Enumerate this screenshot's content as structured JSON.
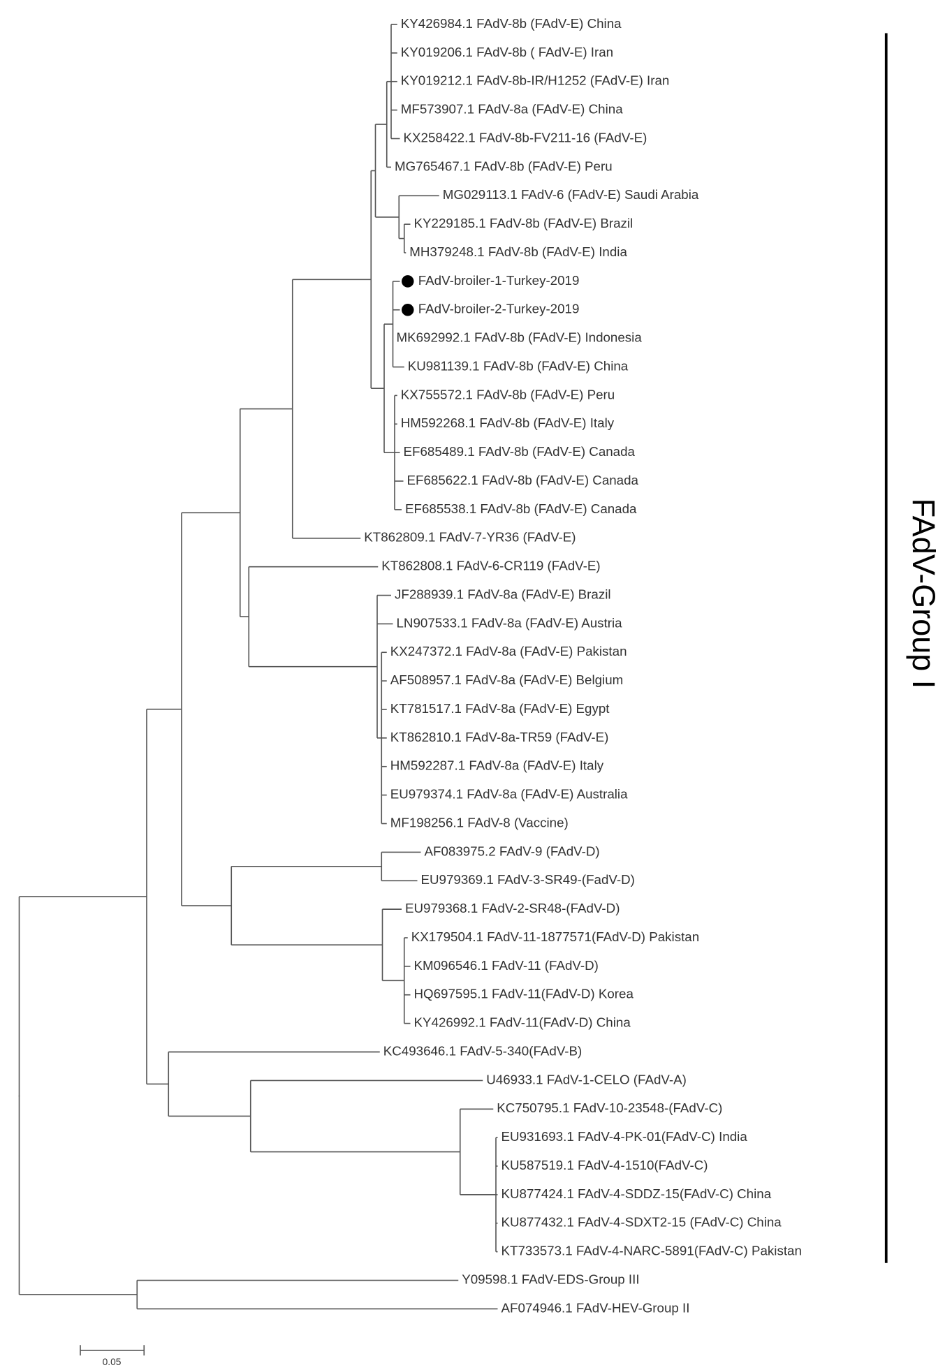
{
  "leaves": [
    "KY426984.1 FAdV-8b (FAdV-E) China",
    "KY019206.1 FAdV-8b ( FAdV-E) Iran",
    "KY019212.1 FAdV-8b-IR/H1252 (FAdV-E) Iran",
    "MF573907.1 FAdV-8a (FAdV-E) China",
    "KX258422.1 FAdV-8b-FV211-16 (FAdV-E)",
    "MG765467.1 FAdV-8b (FAdV-E) Peru",
    "MG029113.1 FAdV-6 (FAdV-E) Saudi Arabia",
    "KY229185.1 FAdV-8b (FAdV-E) Brazil",
    "MH379248.1 FAdV-8b (FAdV-E) India",
    "FAdV-broiler-1-Turkey-2019",
    "FAdV-broiler-2-Turkey-2019",
    "MK692992.1 FAdV-8b (FAdV-E) Indonesia",
    "KU981139.1 FAdV-8b (FAdV-E) China",
    "KX755572.1 FAdV-8b (FAdV-E) Peru",
    "HM592268.1 FAdV-8b (FAdV-E) Italy",
    "EF685489.1 FAdV-8b (FAdV-E) Canada",
    "EF685622.1 FAdV-8b (FAdV-E) Canada",
    "EF685538.1 FAdV-8b (FAdV-E) Canada",
    "KT862809.1 FAdV-7-YR36 (FAdV-E)",
    "KT862808.1 FAdV-6-CR119 (FAdV-E)",
    "JF288939.1 FAdV-8a (FAdV-E) Brazil",
    "LN907533.1 FAdV-8a (FAdV-E) Austria",
    "KX247372.1 FAdV-8a (FAdV-E) Pakistan",
    "AF508957.1 FAdV-8a (FAdV-E) Belgium",
    "KT781517.1 FAdV-8a (FAdV-E) Egypt",
    "KT862810.1 FAdV-8a-TR59 (FAdV-E)",
    "HM592287.1 FAdV-8a (FAdV-E) Italy",
    "EU979374.1 FAdV-8a (FAdV-E) Australia",
    "MF198256.1 FAdV-8 (Vaccine)",
    "AF083975.2 FAdV-9 (FAdV-D)",
    "EU979369.1 FAdV-3-SR49-(FadV-D)",
    "EU979368.1 FAdV-2-SR48-(FAdV-D)",
    "KX179504.1 FAdV-11-1877571(FAdV-D) Pakistan",
    "KM096546.1 FAdV-11 (FAdV-D)",
    "HQ697595.1 FAdV-11(FAdV-D) Korea",
    "KY426992.1 FAdV-11(FAdV-D) China",
    "KC493646.1 FAdV-5-340(FAdV-B)",
    "U46933.1 FAdV-1-CELO (FAdV-A)",
    "KC750795.1 FAdV-10-23548-(FAdV-C)",
    "EU931693.1 FAdV-4-PK-01(FAdV-C) India",
    "KU587519.1 FAdV-4-1510(FAdV-C)",
    "KU877424.1 FAdV-4-SDDZ-15(FAdV-C) China",
    "KU877432.1 FAdV-4-SDXT2-15 (FAdV-C) China",
    "KT733573.1 FAdV-4-NARC-5891(FAdV-C) Pakistan",
    "Y09598.1 FAdV-EDS-Group III",
    "AF074946.1 FAdV-HEV-Group II"
  ],
  "group_label": "FAdV-Group I",
  "scale_label": "0.05"
}
